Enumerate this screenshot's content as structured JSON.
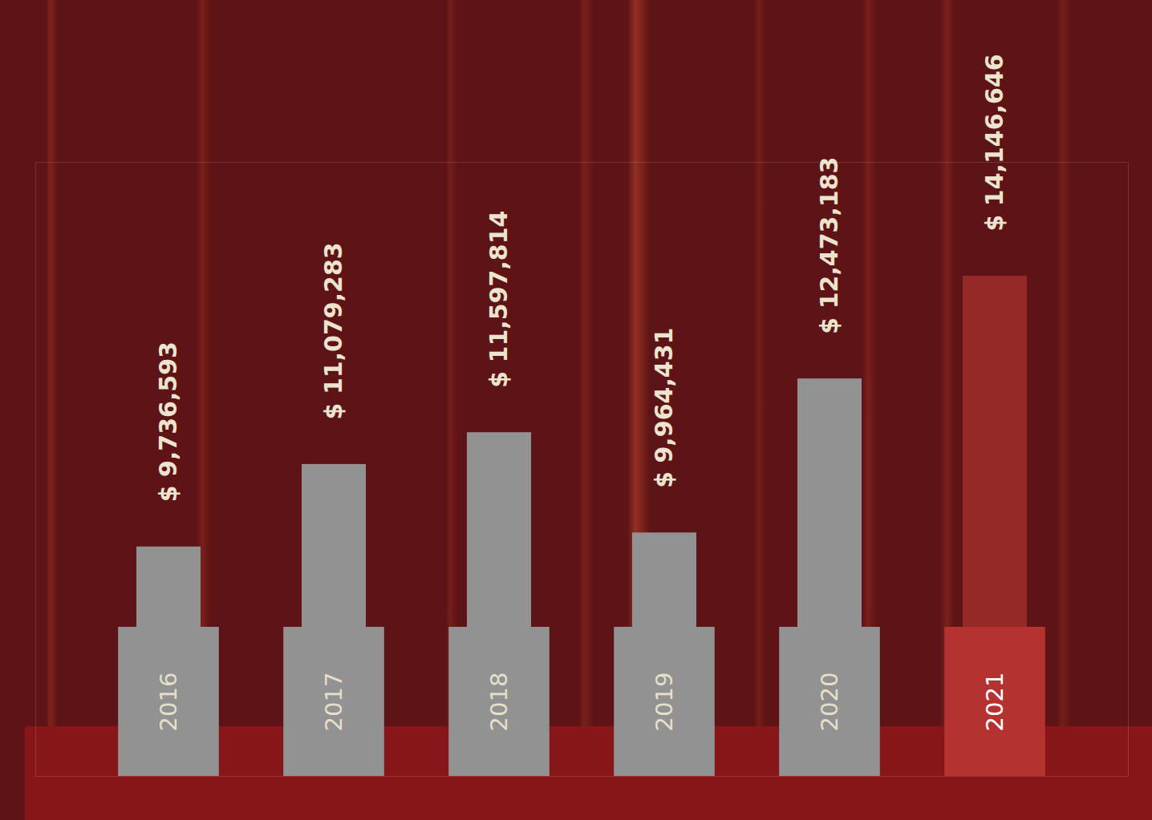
{
  "chart_data": {
    "type": "bar",
    "categories": [
      "2016",
      "2017",
      "2018",
      "2019",
      "2020",
      "2021"
    ],
    "values": [
      9736593,
      11079283,
      11597814,
      9964431,
      12473183,
      14146646
    ],
    "value_labels": [
      "$ 9,736,593",
      "$ 11,079,283",
      "$ 11,597,814",
      "$ 9,964,431",
      "$ 12,473,183",
      "$ 14,146,646"
    ],
    "data_labels": true,
    "colors": [
      "#929292",
      "#929292",
      "#929292",
      "#929292",
      "#929292",
      "#942a28"
    ],
    "ylim": [
      6000000,
      16000000
    ],
    "tick_labels": "x"
  }
}
